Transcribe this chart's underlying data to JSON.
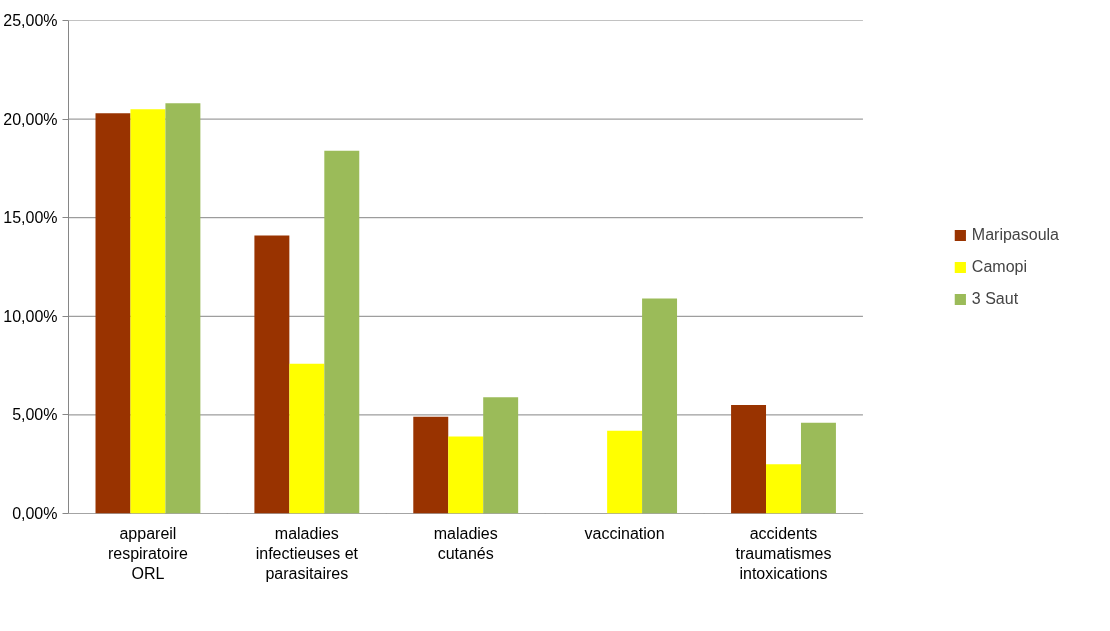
{
  "chart_data": {
    "type": "bar",
    "categories": [
      "appareil respiratoire ORL",
      "maladies infectieuses et parasitaires",
      "maladies cutanés",
      "vaccination",
      "accidents traumatismes intoxications"
    ],
    "series": [
      {
        "name": "Maripasoula",
        "color": "#993300",
        "values": [
          20.3,
          14.1,
          4.9,
          0,
          5.5
        ]
      },
      {
        "name": "Camopi",
        "color": "#ffff00",
        "values": [
          20.5,
          7.6,
          3.9,
          4.2,
          2.5
        ]
      },
      {
        "name": "3 Saut",
        "color": "#9bbb59",
        "values": [
          20.8,
          18.4,
          5.9,
          10.9,
          4.6
        ]
      }
    ],
    "ylim": [
      0,
      25
    ],
    "yticks": [
      {
        "value": 0,
        "label": "0,00%"
      },
      {
        "value": 5,
        "label": "5,00%"
      },
      {
        "value": 10,
        "label": "10,00%"
      },
      {
        "value": 15,
        "label": "15,00%"
      },
      {
        "value": 20,
        "label": "20,00%"
      },
      {
        "value": 25,
        "label": "25,00%"
      }
    ],
    "grid": "y",
    "legend": "right"
  }
}
